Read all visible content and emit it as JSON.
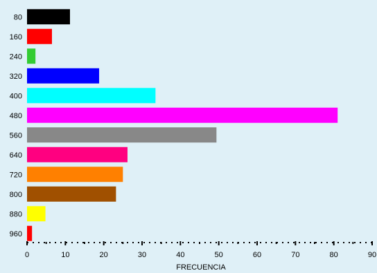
{
  "chart_data": {
    "type": "bar",
    "orientation": "horizontal",
    "categories": [
      "80",
      "160",
      "240",
      "320",
      "400",
      "480",
      "560",
      "640",
      "720",
      "800",
      "880",
      "960"
    ],
    "values": [
      11.2,
      6.5,
      2.2,
      18.8,
      33.5,
      81.0,
      49.4,
      26.2,
      25.0,
      23.2,
      4.8,
      1.3
    ],
    "colors": [
      "#000000",
      "#ff0000",
      "#33cc33",
      "#0000ff",
      "#00ffff",
      "#ff00ff",
      "#888888",
      "#ff0080",
      "#ff8000",
      "#a05000",
      "#ffff00",
      "#ff0000"
    ],
    "xlabel": "FRECUENCIA",
    "ylabel": "",
    "xlim": [
      0,
      90
    ],
    "xticks": [
      0,
      10,
      20,
      30,
      40,
      50,
      60,
      70,
      80,
      90
    ],
    "grid": false,
    "legend": "none"
  },
  "colors": {
    "background": "#dff0f7"
  }
}
